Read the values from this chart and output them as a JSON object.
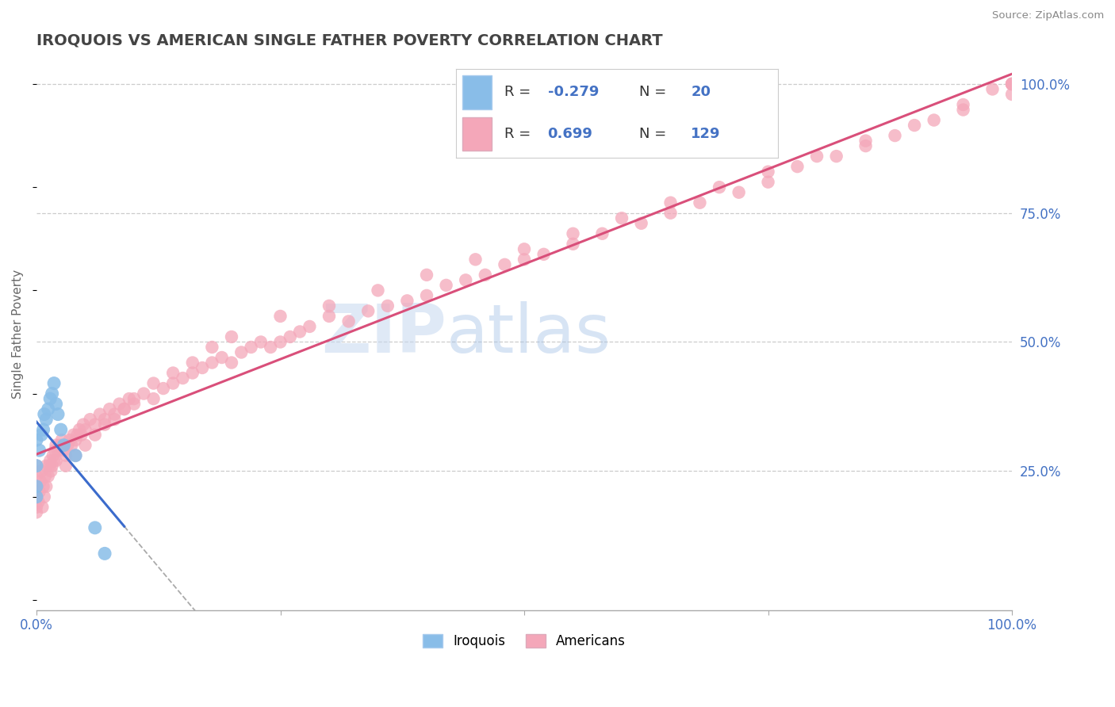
{
  "title": "IROQUOIS VS AMERICAN SINGLE FATHER POVERTY CORRELATION CHART",
  "source": "Source: ZipAtlas.com",
  "ylabel": "Single Father Poverty",
  "xlim": [
    0,
    1
  ],
  "ylim": [
    0,
    1
  ],
  "ytick_labels_right": [
    "25.0%",
    "50.0%",
    "75.0%",
    "100.0%"
  ],
  "ytick_positions_right": [
    0.25,
    0.5,
    0.75,
    1.0
  ],
  "iroquois_color": "#89bde8",
  "americans_color": "#f4a7b9",
  "trend_blue": "#3b6bcc",
  "trend_pink": "#d94f7a",
  "trend_gray": "#aaaaaa",
  "watermark_color": "#ccddf5",
  "background_color": "#ffffff",
  "grid_color": "#cccccc",
  "title_color": "#444444",
  "axis_label_color": "#4472c4",
  "legend_text_color": "#333333",
  "iroquois_r": "-0.279",
  "iroquois_n": "20",
  "americans_r": "0.699",
  "americans_n": "129",
  "iroq_x": [
    0.0,
    0.0,
    0.0,
    0.0,
    0.003,
    0.005,
    0.007,
    0.008,
    0.01,
    0.012,
    0.014,
    0.016,
    0.018,
    0.02,
    0.022,
    0.025,
    0.028,
    0.04,
    0.06,
    0.07
  ],
  "iroq_y": [
    0.2,
    0.22,
    0.26,
    0.31,
    0.29,
    0.32,
    0.33,
    0.36,
    0.35,
    0.37,
    0.39,
    0.4,
    0.42,
    0.38,
    0.36,
    0.33,
    0.3,
    0.28,
    0.14,
    0.09
  ],
  "amer_x": [
    0.0,
    0.0,
    0.0,
    0.0,
    0.0,
    0.0,
    0.002,
    0.003,
    0.004,
    0.005,
    0.006,
    0.007,
    0.008,
    0.009,
    0.01,
    0.01,
    0.012,
    0.013,
    0.014,
    0.015,
    0.016,
    0.017,
    0.018,
    0.019,
    0.02,
    0.02,
    0.022,
    0.024,
    0.026,
    0.028,
    0.03,
    0.032,
    0.034,
    0.036,
    0.038,
    0.04,
    0.042,
    0.044,
    0.046,
    0.048,
    0.05,
    0.055,
    0.06,
    0.065,
    0.07,
    0.075,
    0.08,
    0.085,
    0.09,
    0.095,
    0.1,
    0.11,
    0.12,
    0.13,
    0.14,
    0.15,
    0.16,
    0.17,
    0.18,
    0.19,
    0.2,
    0.21,
    0.22,
    0.23,
    0.24,
    0.25,
    0.26,
    0.27,
    0.28,
    0.3,
    0.32,
    0.34,
    0.36,
    0.38,
    0.4,
    0.42,
    0.44,
    0.46,
    0.48,
    0.5,
    0.52,
    0.55,
    0.58,
    0.62,
    0.65,
    0.68,
    0.72,
    0.75,
    0.78,
    0.82,
    0.85,
    0.88,
    0.92,
    0.95,
    0.98,
    1.0,
    1.0,
    1.0,
    1.0,
    1.0,
    0.03,
    0.04,
    0.05,
    0.06,
    0.07,
    0.08,
    0.09,
    0.1,
    0.12,
    0.14,
    0.16,
    0.18,
    0.2,
    0.25,
    0.3,
    0.35,
    0.4,
    0.45,
    0.5,
    0.55,
    0.6,
    0.65,
    0.7,
    0.75,
    0.8,
    0.85,
    0.9,
    0.95,
    1.0
  ],
  "amer_y": [
    0.17,
    0.18,
    0.2,
    0.22,
    0.24,
    0.26,
    0.19,
    0.21,
    0.23,
    0.25,
    0.18,
    0.22,
    0.2,
    0.24,
    0.22,
    0.26,
    0.24,
    0.26,
    0.27,
    0.25,
    0.26,
    0.28,
    0.27,
    0.29,
    0.27,
    0.3,
    0.29,
    0.3,
    0.31,
    0.29,
    0.28,
    0.3,
    0.31,
    0.3,
    0.32,
    0.31,
    0.32,
    0.33,
    0.32,
    0.34,
    0.33,
    0.35,
    0.34,
    0.36,
    0.35,
    0.37,
    0.36,
    0.38,
    0.37,
    0.39,
    0.38,
    0.4,
    0.39,
    0.41,
    0.42,
    0.43,
    0.44,
    0.45,
    0.46,
    0.47,
    0.46,
    0.48,
    0.49,
    0.5,
    0.49,
    0.5,
    0.51,
    0.52,
    0.53,
    0.55,
    0.54,
    0.56,
    0.57,
    0.58,
    0.59,
    0.61,
    0.62,
    0.63,
    0.65,
    0.66,
    0.67,
    0.69,
    0.71,
    0.73,
    0.75,
    0.77,
    0.79,
    0.81,
    0.84,
    0.86,
    0.88,
    0.9,
    0.93,
    0.96,
    0.99,
    1.0,
    1.0,
    1.0,
    1.0,
    1.0,
    0.26,
    0.28,
    0.3,
    0.32,
    0.34,
    0.35,
    0.37,
    0.39,
    0.42,
    0.44,
    0.46,
    0.49,
    0.51,
    0.55,
    0.57,
    0.6,
    0.63,
    0.66,
    0.68,
    0.71,
    0.74,
    0.77,
    0.8,
    0.83,
    0.86,
    0.89,
    0.92,
    0.95,
    0.98
  ]
}
